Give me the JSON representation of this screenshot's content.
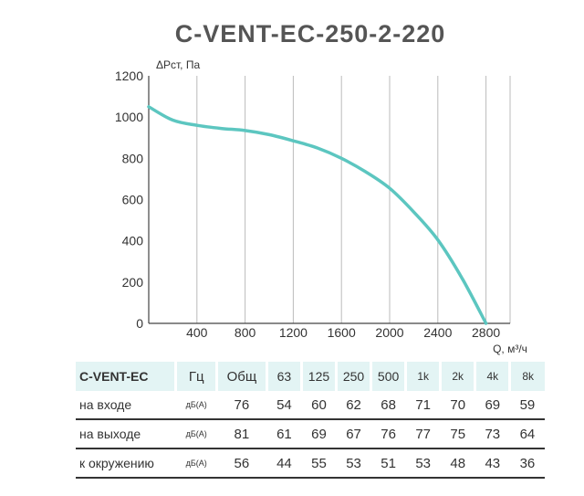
{
  "chart_data": {
    "type": "line",
    "title": "C-VENT-EC-250-2-220",
    "xlabel": "Q, м³/ч",
    "ylabel": "ΔРст, Па",
    "xlim": [
      0,
      3000
    ],
    "ylim": [
      0,
      1200
    ],
    "x_ticks": [
      400,
      800,
      1200,
      1600,
      2000,
      2400,
      2800
    ],
    "y_ticks": [
      0,
      200,
      400,
      600,
      800,
      1000,
      1200
    ],
    "grid": "vertical",
    "series": [
      {
        "x": [
          0,
          200,
          400,
          600,
          800,
          1000,
          1200,
          1400,
          1600,
          1800,
          2000,
          2200,
          2400,
          2600,
          2800
        ],
        "y": [
          1050,
          985,
          960,
          945,
          935,
          915,
          885,
          850,
          800,
          735,
          655,
          540,
          405,
          220,
          0
        ],
        "color": "#5cc6c0"
      }
    ]
  },
  "table": {
    "header": {
      "label": "C-VENT-EC",
      "hz": "Гц",
      "total": "Общ",
      "bands": [
        "63",
        "125",
        "250",
        "500",
        "1k",
        "2k",
        "4k",
        "8k"
      ]
    },
    "rows": [
      {
        "label": "на входе",
        "unit": "дБ(А)",
        "total": "76",
        "values": [
          "54",
          "60",
          "62",
          "68",
          "71",
          "70",
          "69",
          "59"
        ]
      },
      {
        "label": "на выходе",
        "unit": "дБ(А)",
        "total": "81",
        "values": [
          "61",
          "69",
          "67",
          "76",
          "77",
          "75",
          "73",
          "64"
        ]
      },
      {
        "label": "к окружению",
        "unit": "дБ(А)",
        "total": "56",
        "values": [
          "44",
          "55",
          "53",
          "51",
          "53",
          "48",
          "43",
          "36"
        ]
      }
    ]
  },
  "colors": {
    "curve": "#5cc6c0",
    "header_bg": "#e3f4f4",
    "title": "#555555"
  }
}
